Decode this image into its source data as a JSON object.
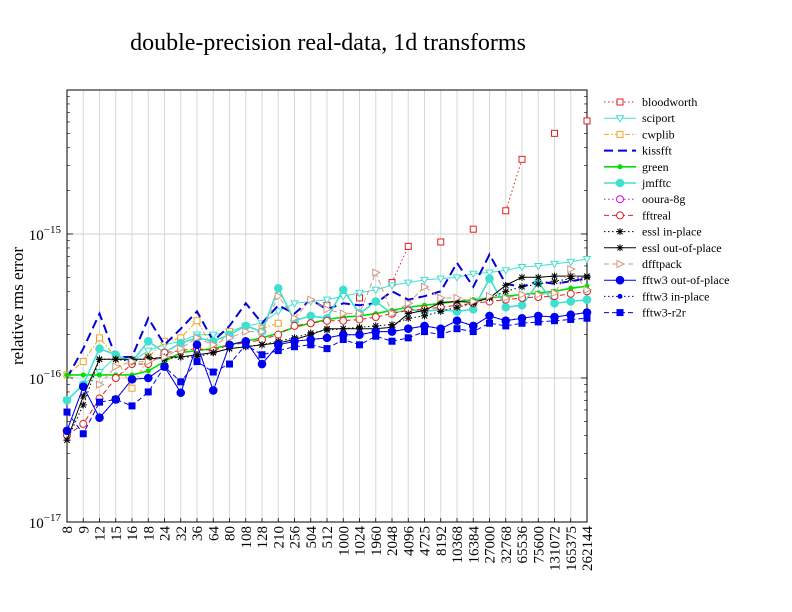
{
  "chart_data": {
    "type": "line",
    "title": "double-precision real-data, 1d transforms",
    "xlabel": "",
    "ylabel": "relative rms error",
    "y_scale": "log",
    "ylim": [
      1e-17,
      1e-14
    ],
    "y_ticks": [
      {
        "value": 1e-17,
        "base": "10",
        "exp": "−17"
      },
      {
        "value": 1e-16,
        "base": "10",
        "exp": "−16"
      },
      {
        "value": 1e-15,
        "base": "10",
        "exp": "−15"
      }
    ],
    "grid": true,
    "legend_position": "right",
    "categories": [
      "8",
      "9",
      "12",
      "15",
      "16",
      "18",
      "24",
      "32",
      "36",
      "64",
      "80",
      "108",
      "128",
      "210",
      "256",
      "504",
      "512",
      "1000",
      "1024",
      "1960",
      "2048",
      "4096",
      "4725",
      "8192",
      "10368",
      "16384",
      "27000",
      "32768",
      "65536",
      "75600",
      "131072",
      "165375",
      "262144"
    ],
    "series": [
      {
        "name": "bloodworth",
        "color": "#e32020",
        "dash": "1.5,2.5",
        "marker": "square-open",
        "values": [
          null,
          null,
          null,
          null,
          null,
          null,
          null,
          null,
          null,
          null,
          null,
          null,
          null,
          null,
          null,
          null,
          3.2e-16,
          null,
          3.6e-16,
          null,
          4.6e-16,
          8.2e-16,
          null,
          8.8e-16,
          null,
          1.08e-15,
          null,
          1.45e-15,
          3.3e-15,
          null,
          5e-15,
          null,
          6.1e-15
        ]
      },
      {
        "name": "sciport",
        "color": "#40e0d0",
        "dash": "",
        "marker": "tri-down-open",
        "values": [
          7e-17,
          9e-17,
          1.1e-16,
          1.4e-16,
          1.3e-16,
          1.55e-16,
          1.7e-16,
          1.8e-16,
          2e-16,
          2e-16,
          2.1e-16,
          2.3e-16,
          2.4e-16,
          2.9e-16,
          3.3e-16,
          3.4e-16,
          3.5e-16,
          3.7e-16,
          3.9e-16,
          4.1e-16,
          4.4e-16,
          4.6e-16,
          4.8e-16,
          4.9e-16,
          5e-16,
          5.3e-16,
          5.4e-16,
          5.6e-16,
          5.9e-16,
          6e-16,
          6.2e-16,
          6.4e-16,
          6.7e-16
        ]
      },
      {
        "name": "cwplib",
        "color": "#f0a020",
        "dash": "5,2,1.5,2",
        "marker": "square-open",
        "values": [
          1.05e-16,
          1.3e-16,
          1.9e-16,
          1.4e-16,
          8.5e-17,
          1.4e-16,
          1.8e-16,
          1.9e-16,
          2.5e-16,
          1.6e-16,
          2.1e-16,
          null,
          2.2e-16,
          2.4e-16,
          null,
          null,
          null,
          null,
          null,
          null,
          null,
          null,
          null,
          null,
          null,
          null,
          null,
          null,
          null,
          null,
          null,
          null,
          null
        ]
      },
      {
        "name": "kissfft",
        "color": "#0000dd",
        "dash": "9,5",
        "marker": "none",
        "values": [
          1e-16,
          1.6e-16,
          2.8e-16,
          1.4e-16,
          1.4e-16,
          2.6e-16,
          1.7e-16,
          2.2e-16,
          2.9e-16,
          1.8e-16,
          2.3e-16,
          3.3e-16,
          2.4e-16,
          3.2e-16,
          2.8e-16,
          3.5e-16,
          3e-16,
          3.3e-16,
          3.2e-16,
          3.3e-16,
          4e-16,
          3.5e-16,
          3.7e-16,
          4e-16,
          6.3e-16,
          4.3e-16,
          7.2e-16,
          4.5e-16,
          4.3e-16,
          4.7e-16,
          4.5e-16,
          4.7e-16,
          4.9e-16
        ]
      },
      {
        "name": "green",
        "color": "#00e000",
        "dash": "",
        "marker": "dot",
        "values": [
          1.05e-16,
          1.05e-16,
          1.05e-16,
          1.05e-16,
          1.05e-16,
          1.12e-16,
          1.3e-16,
          1.5e-16,
          1.55e-16,
          1.6e-16,
          1.7e-16,
          1.8e-16,
          1.9e-16,
          2.05e-16,
          2.25e-16,
          2.4e-16,
          2.55e-16,
          2.65e-16,
          2.7e-16,
          2.8e-16,
          2.95e-16,
          3.1e-16,
          3.2e-16,
          3.3e-16,
          3.4e-16,
          3.5e-16,
          3.6e-16,
          3.7e-16,
          3.8e-16,
          3.9e-16,
          4e-16,
          4.2e-16,
          4.35e-16
        ]
      },
      {
        "name": "jmfftc",
        "color": "#40e0d0",
        "dash": "",
        "marker": "dot-big",
        "values": [
          7e-17,
          9e-17,
          1.6e-16,
          1.45e-16,
          1.3e-16,
          1.8e-16,
          1.5e-16,
          1.75e-16,
          1.9e-16,
          1.8e-16,
          2e-16,
          2.3e-16,
          2.1e-16,
          4.2e-16,
          2.5e-16,
          2.7e-16,
          2.6e-16,
          4.1e-16,
          2.8e-16,
          3.4e-16,
          2.8e-16,
          3e-16,
          2.9e-16,
          3e-16,
          2.9e-16,
          3e-16,
          4.9e-16,
          3.1e-16,
          3.2e-16,
          4.6e-16,
          3.3e-16,
          3.4e-16,
          3.5e-16
        ]
      },
      {
        "name": "ooura-8g",
        "color": "#e000e0",
        "dash": "1.5,2.5",
        "marker": "circle-open",
        "values": [
          null,
          null,
          null,
          null,
          null,
          null,
          null,
          null,
          null,
          null,
          null,
          null,
          null,
          null,
          null,
          null,
          null,
          null,
          null,
          null,
          null,
          null,
          null,
          null,
          null,
          null,
          null,
          null,
          null,
          null,
          null,
          null,
          null
        ]
      },
      {
        "name": "fftreal",
        "color": "#e32020",
        "dash": "5,3",
        "marker": "circle-open",
        "values": [
          4e-17,
          4.8e-17,
          7.2e-17,
          1e-16,
          1.25e-16,
          1.25e-16,
          1.5e-16,
          1.55e-16,
          1.6e-16,
          1.55e-16,
          1.7e-16,
          1.75e-16,
          1.85e-16,
          2e-16,
          2.3e-16,
          2.4e-16,
          2.5e-16,
          2.5e-16,
          2.55e-16,
          2.65e-16,
          2.8e-16,
          2.95e-16,
          3e-16,
          3.1e-16,
          3.2e-16,
          3.3e-16,
          3.4e-16,
          3.5e-16,
          3.6e-16,
          3.65e-16,
          3.7e-16,
          3.85e-16,
          4e-16
        ]
      },
      {
        "name": "essl in-place",
        "color": "#000000",
        "dash": "1.5,2.5",
        "marker": "star",
        "values": [
          3.7e-17,
          6.5e-17,
          1.35e-16,
          1.35e-16,
          1.3e-16,
          1.4e-16,
          1.35e-16,
          1.4e-16,
          1.4e-16,
          1.5e-16,
          1.6e-16,
          1.65e-16,
          1.7e-16,
          1.8e-16,
          1.9e-16,
          2.05e-16,
          2.15e-16,
          2.2e-16,
          2.25e-16,
          2.3e-16,
          2.35e-16,
          2.6e-16,
          2.7e-16,
          2.9e-16,
          3.1e-16,
          3.3e-16,
          3.6e-16,
          4e-16,
          4.3e-16,
          4.5e-16,
          4.7e-16,
          4.9e-16,
          5e-16
        ]
      },
      {
        "name": "essl out-of-place",
        "color": "#000000",
        "dash": "",
        "marker": "star",
        "values": [
          3.7e-17,
          7.5e-17,
          1.35e-16,
          1.35e-16,
          1.35e-16,
          1.35e-16,
          1.4e-16,
          1.4e-16,
          1.45e-16,
          1.5e-16,
          1.6e-16,
          1.65e-16,
          1.7e-16,
          1.75e-16,
          1.85e-16,
          2e-16,
          2.2e-16,
          2.2e-16,
          2.2e-16,
          2.2e-16,
          2.25e-16,
          2.8e-16,
          2.95e-16,
          3.35e-16,
          3.4e-16,
          3.35e-16,
          3.6e-16,
          4.4e-16,
          5e-16,
          5e-16,
          5.1e-16,
          5.1e-16,
          5.1e-16
        ]
      },
      {
        "name": "dfftpack",
        "color": "#d09880",
        "dash": "5,3",
        "marker": "tri-right-open",
        "values": [
          null,
          null,
          9e-17,
          1.2e-16,
          1.3e-16,
          1.3e-16,
          1.4e-16,
          1.6e-16,
          1.9e-16,
          1.7e-16,
          1.9e-16,
          2.1e-16,
          2.1e-16,
          3.7e-16,
          2.6e-16,
          3.5e-16,
          3e-16,
          2.8e-16,
          2.8e-16,
          5.4e-16,
          2.8e-16,
          3.3e-16,
          4.3e-16,
          3.6e-16,
          3.6e-16,
          3.4e-16,
          3.7e-16,
          3.6e-16,
          3.8e-16,
          3.8e-16,
          3.9e-16,
          5.7e-16,
          4.1e-16
        ]
      },
      {
        "name": "fftw3 out-of-place",
        "color": "#0000ee",
        "dash": "",
        "marker": "dot-big",
        "values": [
          4.3e-17,
          8.7e-17,
          5.3e-17,
          7.1e-17,
          9.8e-17,
          1e-16,
          1.2e-16,
          7.9e-17,
          1.7e-16,
          8.2e-17,
          1.7e-16,
          1.8e-16,
          1.25e-16,
          1.7e-16,
          1.8e-16,
          1.85e-16,
          1.9e-16,
          2e-16,
          2e-16,
          2.1e-16,
          2.1e-16,
          2.2e-16,
          2.3e-16,
          2.2e-16,
          2.5e-16,
          2.3e-16,
          2.7e-16,
          2.5e-16,
          2.6e-16,
          2.7e-16,
          2.65e-16,
          2.75e-16,
          2.85e-16
        ]
      },
      {
        "name": "fftw3 in-place",
        "color": "#0000ee",
        "dash": "1.5,2.5",
        "marker": "dot",
        "values": [
          4.3e-17,
          8.7e-17,
          5.3e-17,
          7.1e-17,
          9.8e-17,
          1e-16,
          1.2e-16,
          7.9e-17,
          1.7e-16,
          8.2e-17,
          1.7e-16,
          1.8e-16,
          1.25e-16,
          1.7e-16,
          1.8e-16,
          1.85e-16,
          1.9e-16,
          2e-16,
          2e-16,
          2.1e-16,
          2.1e-16,
          2.2e-16,
          2.3e-16,
          2.2e-16,
          2.5e-16,
          2.3e-16,
          2.7e-16,
          2.5e-16,
          2.6e-16,
          2.7e-16,
          2.65e-16,
          2.75e-16,
          2.85e-16
        ]
      },
      {
        "name": "fftw3-r2r",
        "color": "#0000ee",
        "dash": "5,3",
        "marker": "square",
        "values": [
          5.8e-17,
          4.1e-17,
          6.8e-17,
          7.1e-17,
          6.4e-17,
          8e-17,
          1.2e-16,
          9.4e-17,
          1.3e-16,
          1.1e-16,
          1.25e-16,
          1.7e-16,
          1.45e-16,
          1.55e-16,
          1.65e-16,
          1.7e-16,
          1.6e-16,
          1.85e-16,
          1.7e-16,
          1.95e-16,
          1.8e-16,
          1.9e-16,
          2.1e-16,
          2e-16,
          2.2e-16,
          2.1e-16,
          2.4e-16,
          2.3e-16,
          2.4e-16,
          2.45e-16,
          2.5e-16,
          2.55e-16,
          2.6e-16
        ]
      }
    ]
  }
}
